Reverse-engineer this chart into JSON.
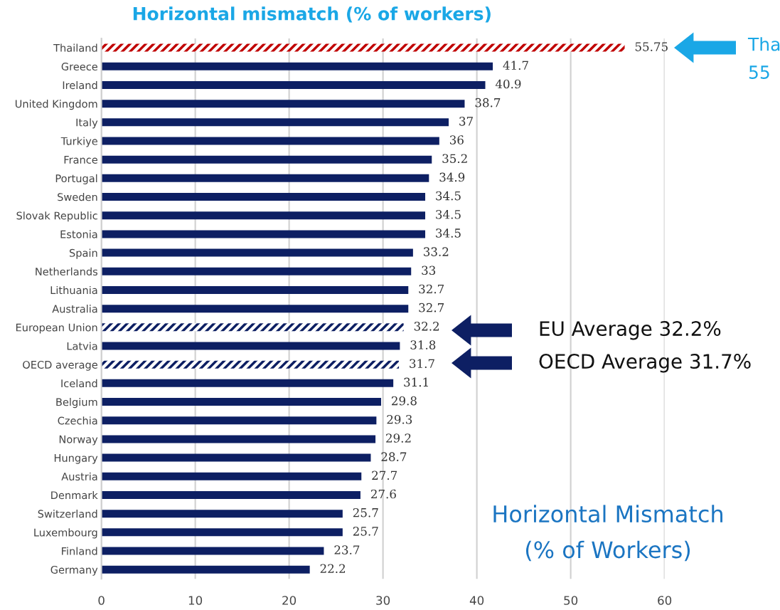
{
  "chart_data": {
    "type": "bar",
    "orientation": "horizontal",
    "title": "Horizontal mismatch (% of workers)",
    "categories": [
      "Thailand",
      "Greece",
      "Ireland",
      "United Kingdom",
      "Italy",
      "Turkiye",
      "France",
      "Portugal",
      "Sweden",
      "Slovak Republic",
      "Estonia",
      "Spain",
      "Netherlands",
      "Lithuania",
      "Australia",
      "European Union",
      "Latvia",
      "OECD average",
      "Iceland",
      "Belgium",
      "Czechia",
      "Norway",
      "Hungary",
      "Austria",
      "Denmark",
      "Switzerland",
      "Luxembourg",
      "Finland",
      "Germany"
    ],
    "series": [
      {
        "color": "#0d1f63",
        "values": [
          null,
          41.7,
          40.9,
          38.7,
          37,
          36,
          35.2,
          34.9,
          34.5,
          34.5,
          34.5,
          33.2,
          33,
          32.7,
          32.7,
          null,
          31.8,
          null,
          31.1,
          29.8,
          29.3,
          29.2,
          28.7,
          27.7,
          27.6,
          25.7,
          25.7,
          23.7,
          22.2
        ]
      },
      {
        "colors": [
          "#c00000",
          null,
          null,
          null,
          null,
          null,
          null,
          null,
          null,
          null,
          null,
          null,
          null,
          null,
          null,
          "#0d1f63",
          null,
          "#0d1f63",
          null,
          null,
          null,
          null,
          null,
          null,
          null,
          null,
          null,
          null,
          null
        ],
        "values": [
          55.75,
          null,
          null,
          null,
          null,
          null,
          null,
          null,
          null,
          null,
          null,
          null,
          null,
          null,
          null,
          32.2,
          null,
          31.7,
          null,
          null,
          null,
          null,
          null,
          null,
          null,
          null,
          null,
          null,
          null
        ]
      }
    ],
    "stacked": true,
    "xlim": [
      0,
      60
    ],
    "xticks": [
      0,
      10,
      20,
      30,
      40,
      50,
      60
    ],
    "grid": "x",
    "data_labels": true,
    "annotations": [
      "Tha\n55",
      "EU Average 32.2%",
      "OECD Average 31.7%",
      "Horizontal Mismatch\n(% of Workers)"
    ]
  }
}
